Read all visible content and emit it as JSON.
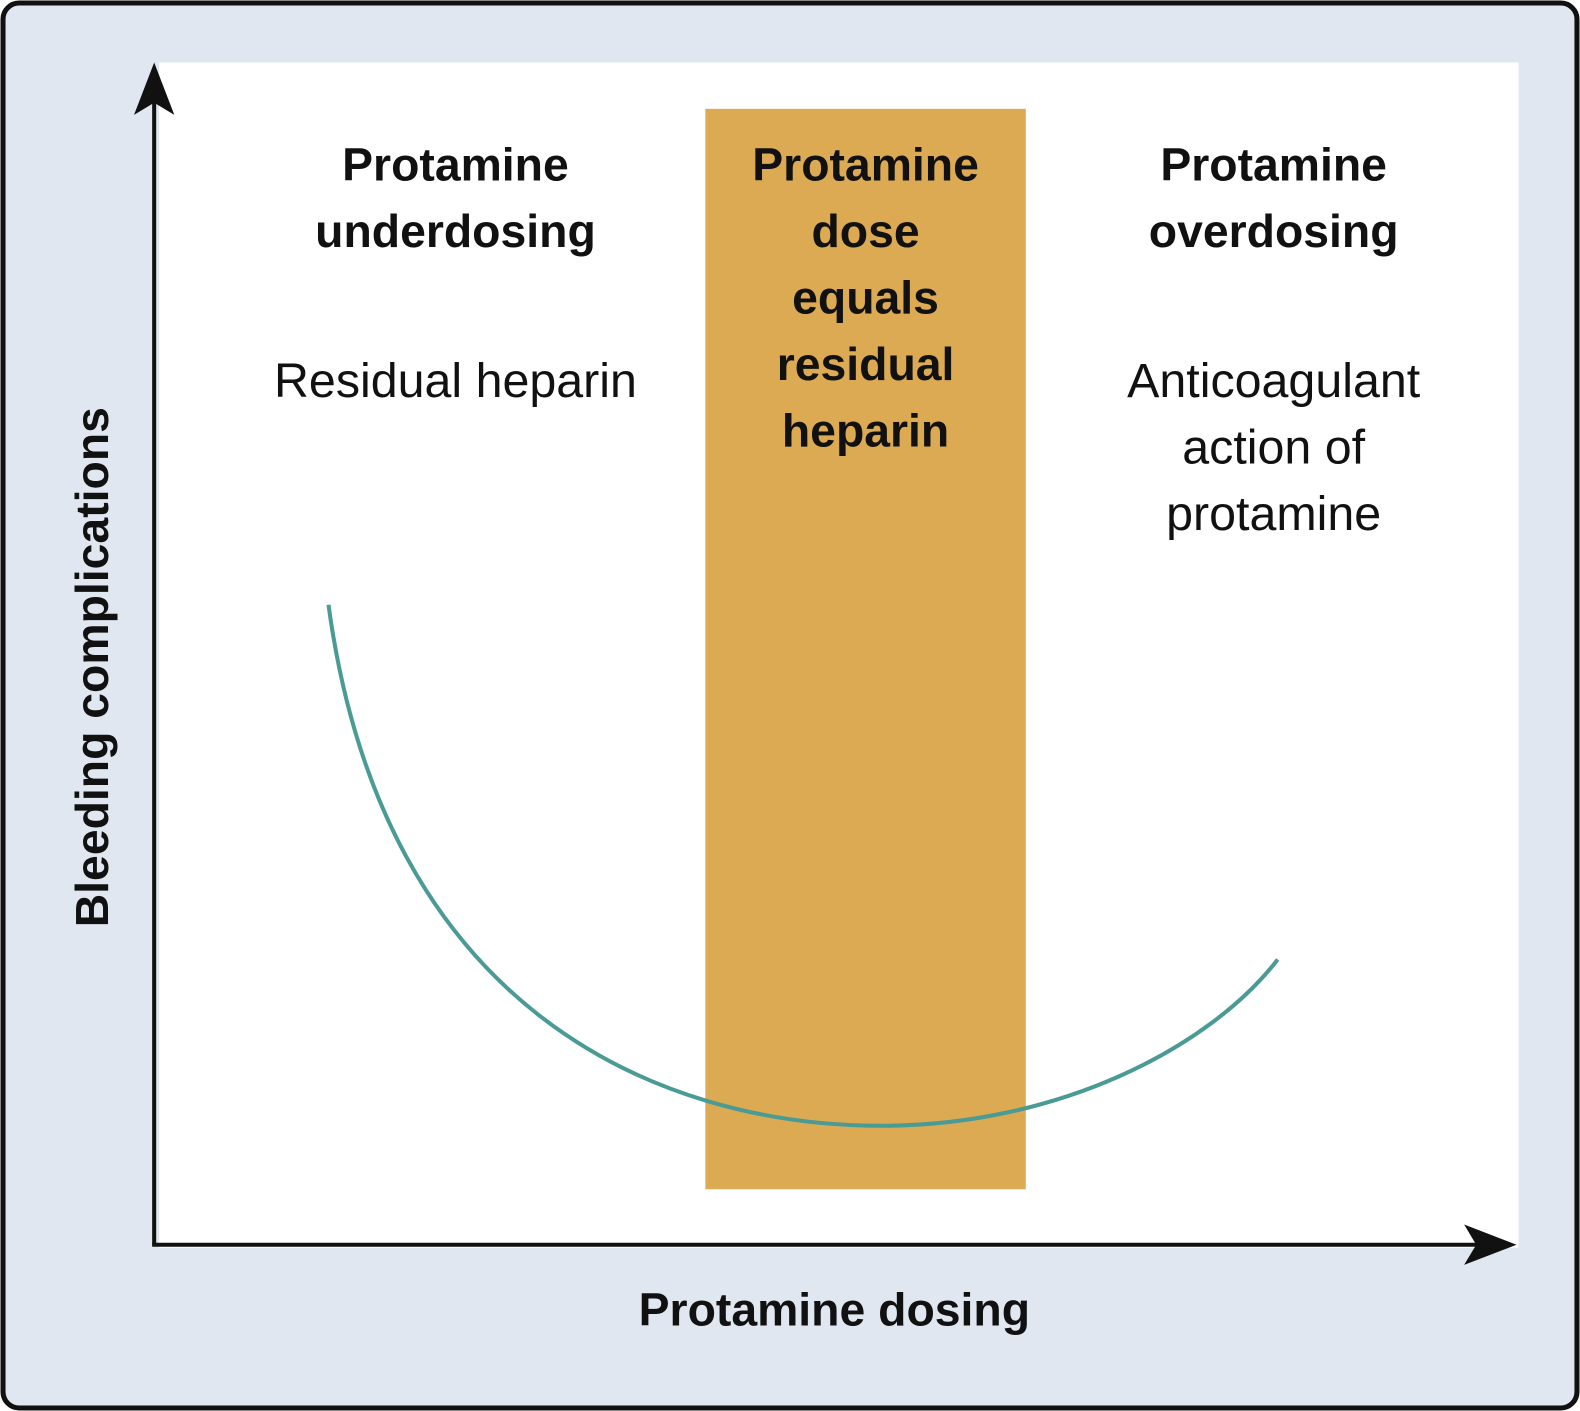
{
  "axes": {
    "x_label": "Protamine dosing",
    "y_label": "Bleeding complications"
  },
  "regions": [
    {
      "heading": [
        "Protamine",
        "underdosing"
      ],
      "description": [
        "Residual heparin"
      ]
    },
    {
      "heading": [
        "Protamine",
        "dose",
        "equals",
        "residual",
        "heparin"
      ]
    },
    {
      "heading": [
        "Protamine",
        "overdosing"
      ],
      "description": [
        "Anticoagulant",
        "action of",
        "protamine"
      ]
    }
  ]
}
